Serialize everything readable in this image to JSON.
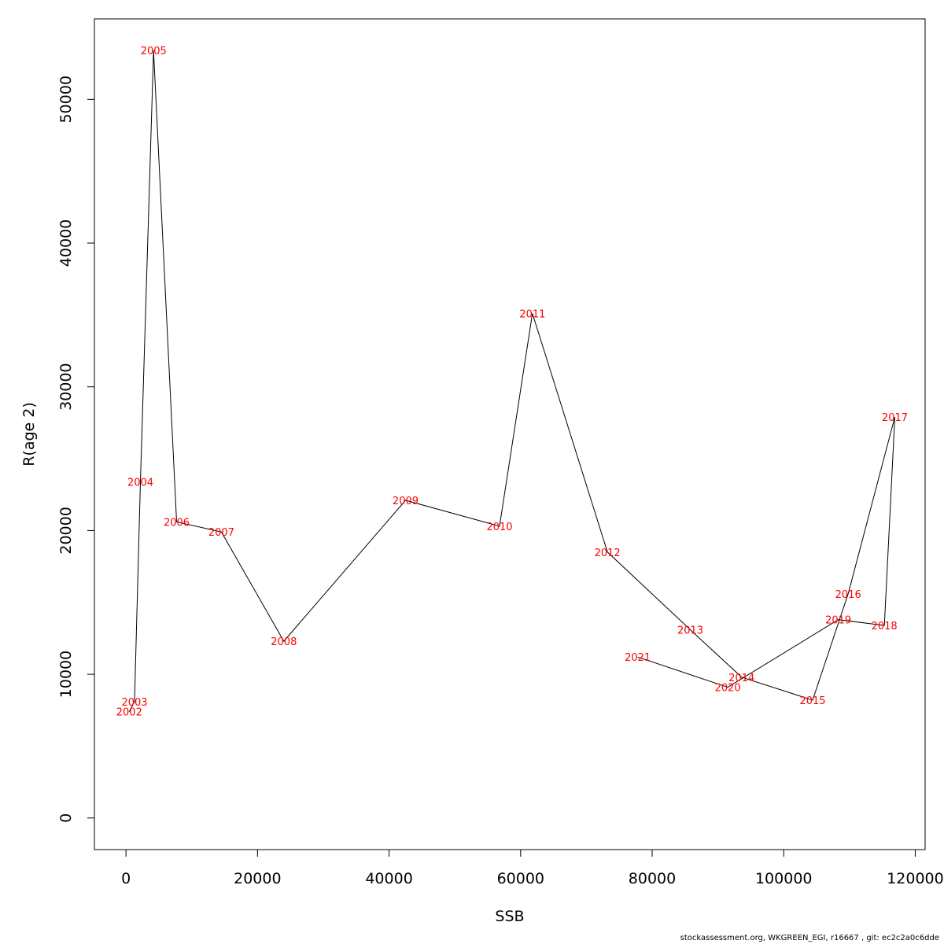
{
  "chart_data": {
    "type": "line",
    "title": "",
    "xlabel": "SSB",
    "ylabel": "R(age 2)",
    "xlim": [
      -4800,
      121500
    ],
    "ylim": [
      -2200,
      55600
    ],
    "xticks": [
      0,
      20000,
      40000,
      60000,
      80000,
      100000,
      120000
    ],
    "xtick_labels": [
      "0",
      "20000",
      "40000",
      "60000",
      "80000",
      "100000",
      "120000"
    ],
    "yticks": [
      0,
      10000,
      20000,
      30000,
      40000,
      50000
    ],
    "ytick_labels": [
      "0",
      "10000",
      "20000",
      "30000",
      "40000",
      "50000"
    ],
    "grid": false,
    "legend": "none",
    "line_color": "#000000",
    "label_color": "#ff0000",
    "points": [
      {
        "label": "2002",
        "x": 500,
        "y": 7400
      },
      {
        "label": "2003",
        "x": 1300,
        "y": 8100
      },
      {
        "label": "2004",
        "x": 2200,
        "y": 23400
      },
      {
        "label": "2005",
        "x": 4200,
        "y": 53400
      },
      {
        "label": "2006",
        "x": 7700,
        "y": 20600
      },
      {
        "label": "2007",
        "x": 14500,
        "y": 19900
      },
      {
        "label": "2008",
        "x": 24000,
        "y": 12300
      },
      {
        "label": "2009",
        "x": 42500,
        "y": 22100
      },
      {
        "label": "2010",
        "x": 56800,
        "y": 20300
      },
      {
        "label": "2011",
        "x": 61800,
        "y": 35100
      },
      {
        "label": "2012",
        "x": 73200,
        "y": 18500
      },
      {
        "label": "2013",
        "x": 85800,
        "y": 13100
      },
      {
        "label": "2014",
        "x": 93600,
        "y": 9800
      },
      {
        "label": "2015",
        "x": 104400,
        "y": 8200
      },
      {
        "label": "2016",
        "x": 109800,
        "y": 15600
      },
      {
        "label": "2017",
        "x": 116900,
        "y": 27900
      },
      {
        "label": "2018",
        "x": 115300,
        "y": 13400
      },
      {
        "label": "2019",
        "x": 108300,
        "y": 13800
      },
      {
        "label": "2020",
        "x": 91500,
        "y": 9100
      },
      {
        "label": "2021",
        "x": 77800,
        "y": 11200
      }
    ]
  },
  "footer": "stockassessment.org, WKGREEN_EGI, r16667 , git: ec2c2a0c6dde"
}
